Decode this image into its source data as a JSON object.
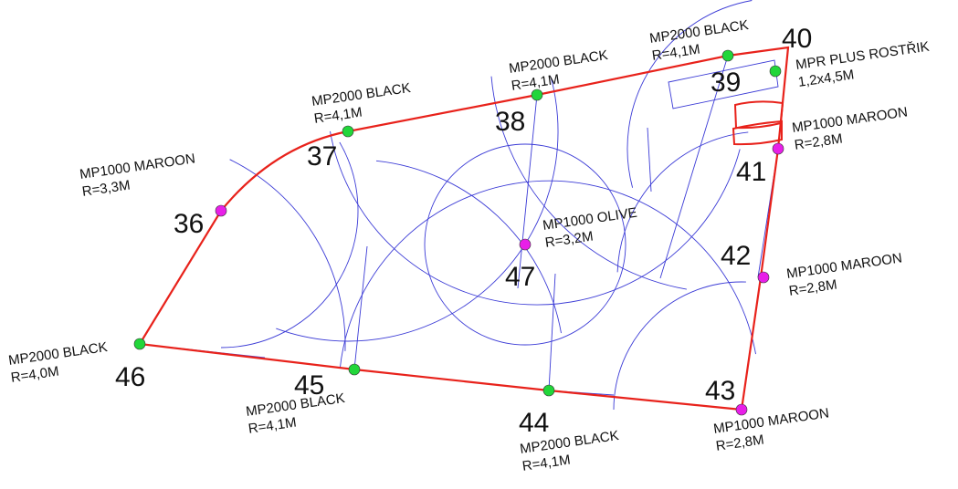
{
  "colors": {
    "boundary": "#e8221b",
    "coverage": "#3b3bd6",
    "black_head": "#22d63a",
    "maroon_head": "#e81fe8",
    "olive_head": "#e81fe8",
    "label": "#111111"
  },
  "sprinklers": [
    {
      "id": "36",
      "model": "MP1000 MAROON",
      "radius": "R=3,3M",
      "color_key": "maroon_head"
    },
    {
      "id": "37",
      "model": "MP2000 BLACK",
      "radius": "R=4,1M",
      "color_key": "black_head"
    },
    {
      "id": "38",
      "model": "MP2000 BLACK",
      "radius": "R=4,1M",
      "color_key": "black_head"
    },
    {
      "id": "39",
      "model": "MP2000 BLACK",
      "radius": "R=4,1M",
      "color_key": "black_head"
    },
    {
      "id": "40",
      "model": "MPR PLUS ROSTŘIK",
      "radius": "1,2x4,5M",
      "color_key": "black_head"
    },
    {
      "id": "41",
      "model": "MP1000 MAROON",
      "radius": "R=2,8M",
      "color_key": "maroon_head"
    },
    {
      "id": "42",
      "model": "MP1000 MAROON",
      "radius": "R=2,8M",
      "color_key": "maroon_head"
    },
    {
      "id": "43",
      "model": "MP1000 MAROON",
      "radius": "R=2,8M",
      "color_key": "maroon_head"
    },
    {
      "id": "44",
      "model": "MP2000 BLACK",
      "radius": "R=4,1M",
      "color_key": "black_head"
    },
    {
      "id": "45",
      "model": "MP2000 BLACK",
      "radius": "R=4,1M",
      "color_key": "black_head"
    },
    {
      "id": "46",
      "model": "MP2000 BLACK",
      "radius": "R=4,0M",
      "color_key": "black_head"
    },
    {
      "id": "47",
      "model": "MP1000 OLIVE",
      "radius": "R=3,2M",
      "color_key": "olive_head"
    }
  ]
}
